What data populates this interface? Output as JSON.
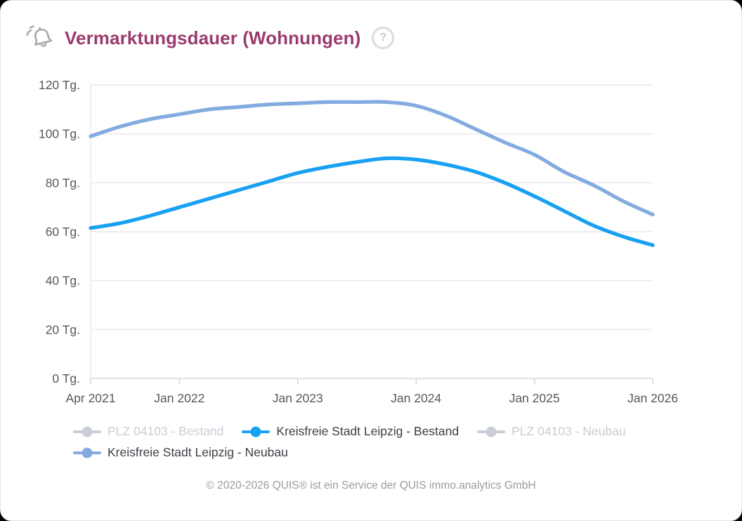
{
  "header": {
    "title": "Vermarktungsdauer (Wohnungen)",
    "bell_icon": "notification-bell",
    "help_icon_glyph": "?"
  },
  "legend": [
    {
      "label": "PLZ 04103 - Bestand",
      "color": "#c9cdd6",
      "active": false
    },
    {
      "label": "Kreisfreie Stadt Leipzig - Bestand",
      "color": "#18a0f3",
      "active": true
    },
    {
      "label": "PLZ 04103 - Neubau",
      "color": "#c9cdd6",
      "active": false
    },
    {
      "label": "Kreisfreie Stadt Leipzig - Neubau",
      "color": "#84abdf",
      "active": true
    }
  ],
  "footer": {
    "copyright": "© 2020-2026 QUIS® ist ein Service der QUIS immo.analytics GmbH"
  },
  "chart_data": {
    "type": "line",
    "title": "Vermarktungsdauer (Wohnungen)",
    "y_unit": "Tg.",
    "ylim": [
      0,
      120
    ],
    "y_ticks": [
      0,
      20,
      40,
      60,
      80,
      100,
      120
    ],
    "grid": "horizontal",
    "legend_position": "bottom",
    "x_axis": {
      "start_month": "Apr 2021",
      "end_month": "Jan 2026",
      "total_months": 57,
      "ticks": [
        {
          "label": "Apr 2021",
          "month": 0
        },
        {
          "label": "Jan 2022",
          "month": 9
        },
        {
          "label": "Jan 2023",
          "month": 21
        },
        {
          "label": "Jan 2024",
          "month": 33
        },
        {
          "label": "Jan 2025",
          "month": 45
        },
        {
          "label": "Jan 2026",
          "month": 57
        }
      ]
    },
    "x_quarterly": [
      "Apr 2021",
      "Jul 2021",
      "Okt 2021",
      "Jan 2022",
      "Apr 2022",
      "Jul 2022",
      "Okt 2022",
      "Jan 2023",
      "Apr 2023",
      "Jul 2023",
      "Okt 2023",
      "Jan 2024",
      "Apr 2024",
      "Jul 2024",
      "Okt 2024",
      "Jan 2025",
      "Apr 2025",
      "Jul 2025",
      "Okt 2025",
      "Jan 2026"
    ],
    "series": [
      {
        "name": "Kreisfreie Stadt Leipzig - Neubau",
        "color": "#84abdf",
        "values": [
          99,
          103,
          106,
          108,
          110,
          111,
          112,
          112.5,
          113,
          113,
          113,
          111.5,
          107.5,
          102,
          96.5,
          91.5,
          84.5,
          79,
          72.5,
          67
        ]
      },
      {
        "name": "Kreisfreie Stadt Leipzig - Bestand",
        "color": "#18a0f3",
        "values": [
          61.5,
          63.5,
          66.5,
          70,
          73.5,
          77,
          80.5,
          84,
          86.5,
          88.5,
          90,
          89.5,
          87.5,
          84.5,
          80,
          74.5,
          68.5,
          62.5,
          58,
          54.5
        ]
      }
    ],
    "hidden_series": [
      "PLZ 04103 - Bestand",
      "PLZ 04103 - Neubau"
    ]
  }
}
